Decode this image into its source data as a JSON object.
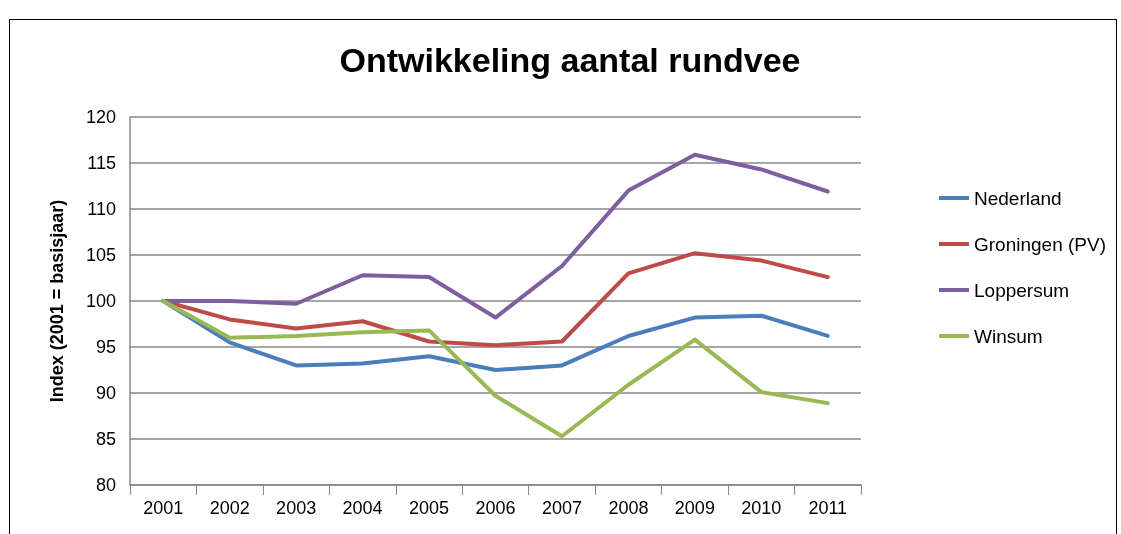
{
  "chart_data": {
    "type": "line",
    "title": "Ontwikkeling aantal rundvee",
    "ylabel": "Index (2001 = basisjaar)",
    "categories": [
      "2001",
      "2002",
      "2003",
      "2004",
      "2005",
      "2006",
      "2007",
      "2008",
      "2009",
      "2010",
      "2011"
    ],
    "series": [
      {
        "name": "Nederland",
        "color": "#4a7ebb",
        "values": [
          100,
          95.5,
          93,
          93.2,
          94,
          92.5,
          93,
          96.2,
          98.2,
          98.4,
          96.2
        ]
      },
      {
        "name": "Groningen (PV)",
        "color": "#be4b48",
        "values": [
          100,
          98,
          97,
          97.8,
          95.6,
          95.2,
          95.6,
          103,
          105.2,
          104.4,
          102.6
        ]
      },
      {
        "name": "Loppersum",
        "color": "#7d5fa0",
        "values": [
          100,
          100,
          99.7,
          102.8,
          102.6,
          98.2,
          103.8,
          112,
          115.9,
          114.3,
          111.9
        ]
      },
      {
        "name": "Winsum",
        "color": "#98b954",
        "values": [
          100,
          96,
          96.2,
          96.6,
          96.8,
          89.7,
          85.3,
          90.9,
          95.8,
          90.1,
          88.9
        ]
      }
    ],
    "ylim": [
      80,
      120
    ],
    "yticks": [
      80,
      85,
      90,
      95,
      100,
      105,
      110,
      115,
      120
    ],
    "grid": "y",
    "legend": "right",
    "marker": "none",
    "line_style": "solid"
  }
}
